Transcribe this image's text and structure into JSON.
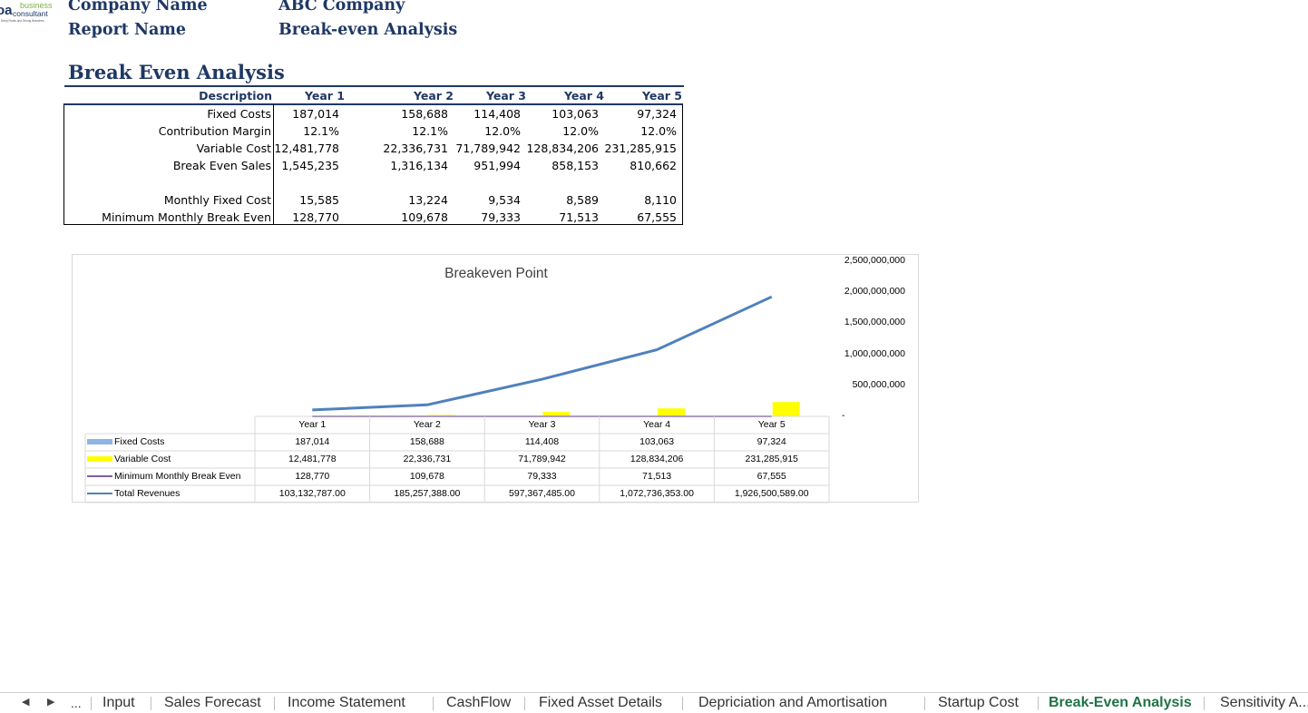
{
  "header": {
    "logo_text": [
      "business",
      "consultant",
      "Deep Roots and Strong Branches"
    ],
    "company_label": "Company Name",
    "company_value": "ABC Company",
    "report_label": "Report Name",
    "report_value": "Break-even Analysis"
  },
  "table": {
    "title": "Break Even Analysis",
    "columns": [
      "Description",
      "Year 1",
      "Year 2",
      "Year 3",
      "Year 4",
      "Year 5"
    ],
    "rows": [
      {
        "label": "Fixed Costs",
        "values": [
          "187,014",
          "158,688",
          "114,408",
          "103,063",
          "97,324"
        ]
      },
      {
        "label": "Contribution Margin",
        "values": [
          "12.1%",
          "12.1%",
          "12.0%",
          "12.0%",
          "12.0%"
        ]
      },
      {
        "label": "Variable Cost",
        "values": [
          "12,481,778",
          "22,336,731",
          "71,789,942",
          "128,834,206",
          "231,285,915"
        ]
      },
      {
        "label": "Break Even Sales",
        "values": [
          "1,545,235",
          "1,316,134",
          "951,994",
          "858,153",
          "810,662"
        ]
      },
      {
        "label": "Monthly Fixed Cost",
        "values": [
          "15,585",
          "13,224",
          "9,534",
          "8,589",
          "8,110"
        ]
      },
      {
        "label": "Minimum Monthly Break Even",
        "values": [
          "128,770",
          "109,678",
          "79,333",
          "71,513",
          "67,555"
        ]
      }
    ]
  },
  "chart_data": {
    "type": "bar",
    "title": "Breakeven Point",
    "categories": [
      "Year 1",
      "Year 2",
      "Year 3",
      "Year 4",
      "Year 5"
    ],
    "y_ticks": [
      "2,500,000,000",
      "2,000,000,000",
      "1,500,000,000",
      "1,000,000,000",
      "500,000,000",
      "-"
    ],
    "ylim": [
      0,
      2500000000
    ],
    "legend": "data-table",
    "series": [
      {
        "name": "Fixed Costs",
        "kind": "bar",
        "color": "#8eb4e3",
        "values": [
          187014,
          158688,
          114408,
          103063,
          97324
        ],
        "labels": [
          "187,014",
          "158,688",
          "114,408",
          "103,063",
          "97,324"
        ]
      },
      {
        "name": "Variable Cost",
        "kind": "bar",
        "color": "#ffff00",
        "values": [
          12481778,
          22336731,
          71789942,
          128834206,
          231285915
        ],
        "labels": [
          "12,481,778",
          "22,336,731",
          "71,789,942",
          "128,834,206",
          "231,285,915"
        ]
      },
      {
        "name": "Minimum Monthly Break Even",
        "kind": "line",
        "color": "#7f5fa8",
        "values": [
          128770,
          109678,
          79333,
          71513,
          67555
        ],
        "labels": [
          "128,770",
          "109,678",
          "79,333",
          "71,513",
          "67,555"
        ]
      },
      {
        "name": "Total Revenues",
        "kind": "line",
        "color": "#4f81bd",
        "values": [
          103132787,
          185257388,
          597367485,
          1072736353,
          1926500589
        ],
        "labels": [
          "103,132,787.00",
          "185,257,388.00",
          "597,367,485.00",
          "1,072,736,353.00",
          "1,926,500,589.00"
        ]
      }
    ]
  },
  "tabs": {
    "nav_prev": "◀",
    "nav_next": "▶",
    "ellipsis": "...",
    "items": [
      "Input",
      "Sales Forecast",
      "Income Statement",
      "CashFlow",
      "Fixed Asset Details",
      "Depriciation and Amortisation",
      "Startup Cost",
      "Break-Even Analysis",
      "Sensitivity A..."
    ],
    "active": "Break-Even Analysis"
  }
}
